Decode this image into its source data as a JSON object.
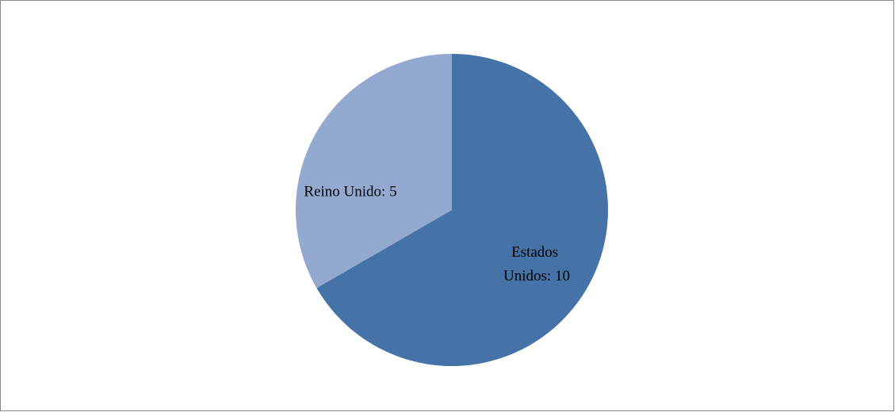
{
  "chart_data": {
    "type": "pie",
    "values": [
      10,
      5
    ],
    "value_labels": [
      "Estados Unidos: 10",
      "Reino Unido: 5"
    ],
    "colors": [
      "#4572a7",
      "#94a9d0"
    ]
  }
}
